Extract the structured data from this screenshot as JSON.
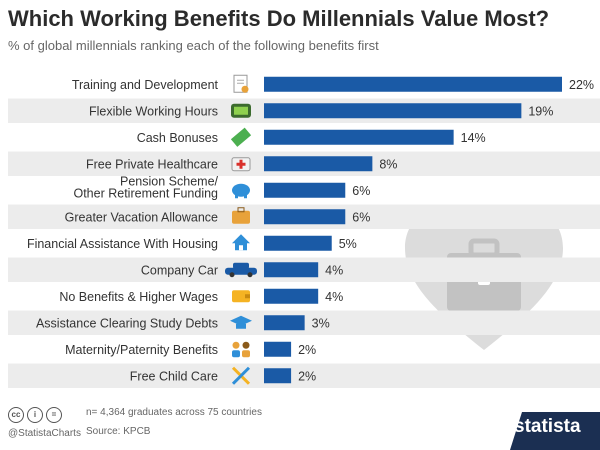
{
  "header": {
    "title": "Which Working Benefits Do Millennials Value Most?",
    "subtitle": "% of global millennials ranking each of the following benefits first"
  },
  "chart_data": {
    "type": "bar",
    "orientation": "horizontal",
    "title": "Which Working Benefits Do Millennials Value Most?",
    "subtitle": "% of global millennials ranking each of the following benefits first",
    "categories": [
      "Training and Development",
      "Flexible Working Hours",
      "Cash Bonuses",
      "Free Private Healthcare",
      "Pension Scheme/\nOther Retirement Funding",
      "Greater Vacation Allowance",
      "Financial Assistance With Housing",
      "Company Car",
      "No Benefits & Higher Wages",
      "Assistance Clearing Study Debts",
      "Maternity/Paternity Benefits",
      "Free Child Care"
    ],
    "values": [
      22,
      19,
      14,
      8,
      6,
      6,
      5,
      4,
      4,
      3,
      2,
      2
    ],
    "value_labels": [
      "22%",
      "19%",
      "14%",
      "8%",
      "6%",
      "6%",
      "5%",
      "4%",
      "4%",
      "3%",
      "2%",
      "2%"
    ],
    "icons": [
      "certificate-icon",
      "clock-icon",
      "banknote-icon",
      "first-aid-kit-icon",
      "piggy-bank-icon",
      "suitcase-icon",
      "house-icon",
      "car-icon",
      "wallet-icon",
      "graduation-cap-icon",
      "parents-icon",
      "tools-icon"
    ],
    "xlim": [
      0,
      22
    ],
    "grid": false,
    "bar_color": "#1a5aa6"
  },
  "footer": {
    "handle": "@StatistaCharts",
    "note": "n= 4,364 graduates across 75 countries",
    "source": "Source: KPCB",
    "logo_text": "statista",
    "cc_labels": [
      "cc",
      "i",
      "="
    ]
  },
  "colors": {
    "bar": "#1a5aa6",
    "row_stripe": "#ececec",
    "heart": "#dcdcdc",
    "briefcase": "#c2c2c2",
    "logo_bg": "#1b2f52"
  }
}
